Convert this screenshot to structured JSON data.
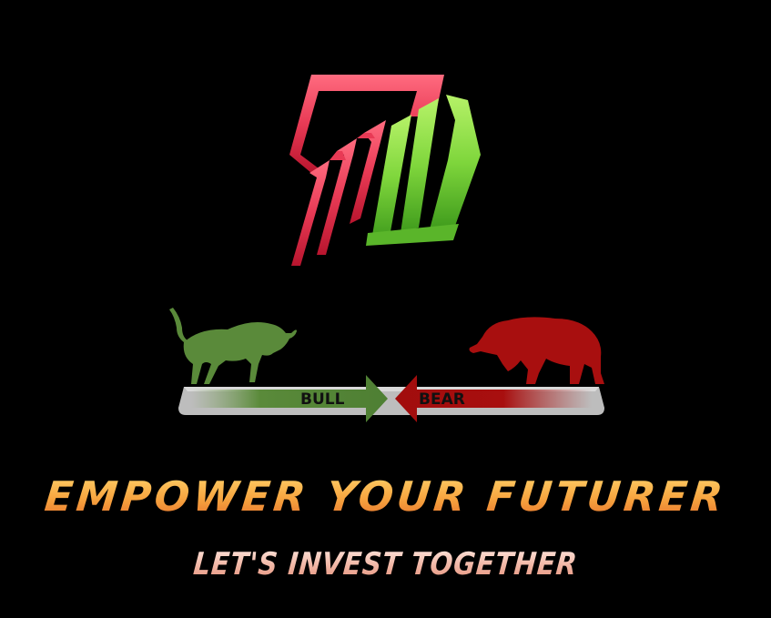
{
  "logo": {
    "icon": "rising-bars-logo",
    "colors": {
      "red": "#d92b46",
      "green": "#7ad43a"
    }
  },
  "battle": {
    "bull_label": "BULL",
    "bear_label": "BEAR",
    "colors": {
      "bull": "#5a8a3a",
      "bear": "#a80f0f",
      "platform": "#b8b8b8"
    }
  },
  "tagline": {
    "main": "EMPOWER YOUR FUTURER",
    "sub": "LET'S INVEST TOGETHER"
  }
}
